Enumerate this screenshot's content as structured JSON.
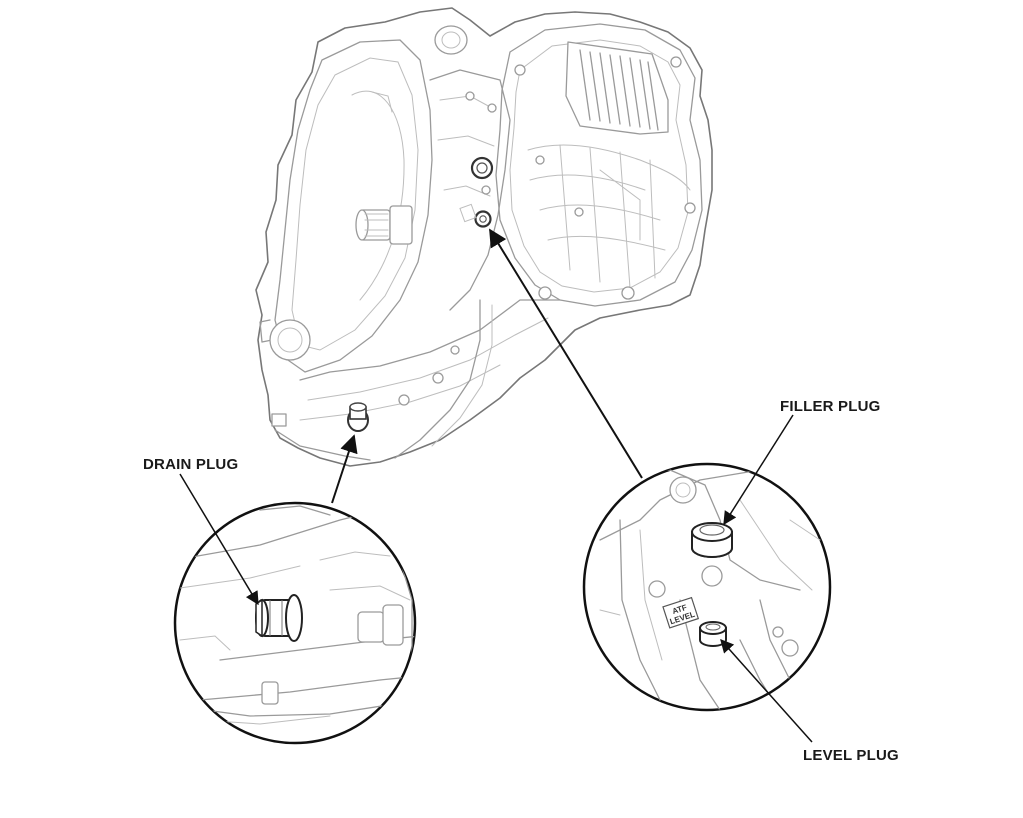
{
  "labels": {
    "drain_plug": "DRAIN PLUG",
    "filler_plug": "FILLER PLUG",
    "level_plug": "LEVEL PLUG",
    "atf_level_line1": "ATF",
    "atf_level_line2": "LEVEL"
  },
  "colors": {
    "line_art": "#9a9a9a",
    "leader": "#111111",
    "background": "#ffffff"
  }
}
